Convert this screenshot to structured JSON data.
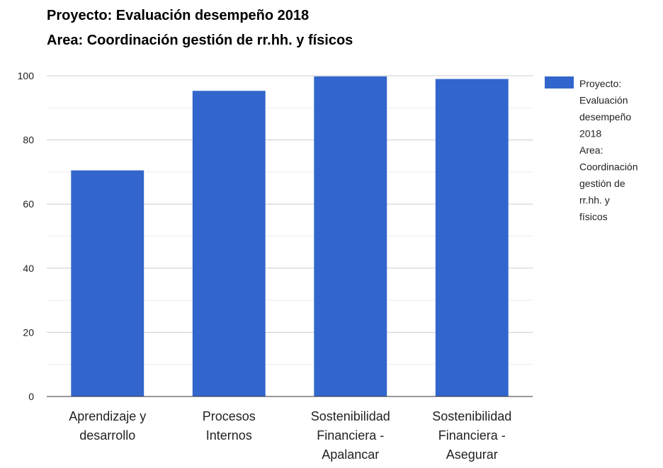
{
  "chart_data": {
    "type": "bar",
    "title": "Proyecto: Evaluación desempeño 2018",
    "subtitle": "Area: Coordinación gestión de rr.hh. y físicos",
    "categories": [
      [
        "Aprendizaje y",
        "desarrollo"
      ],
      [
        "Procesos",
        "Internos"
      ],
      [
        "Sostenibilidad",
        "Financiera -",
        "Apalancar"
      ],
      [
        "Sostenibilidad",
        "Financiera -",
        "Asegurar"
      ]
    ],
    "series": [
      {
        "name": "Proyecto: Evaluación desempeño 2018 Area: Coordinación gestión de rr.hh. y físicos",
        "legend_lines": [
          "Proyecto:",
          "Evaluación",
          "desempeño",
          "2018",
          "Area:",
          "Coordinación",
          "gestión de",
          "rr.hh. y",
          "físicos"
        ],
        "values": [
          70.5,
          95.3,
          99.8,
          99
        ]
      }
    ],
    "yticks": [
      "0",
      "20",
      "40",
      "60",
      "80",
      "100"
    ],
    "ylim": [
      0,
      100
    ],
    "xlabel": "",
    "ylabel": "",
    "grid": true,
    "legend": "right",
    "colors": {
      "bar": "#3366cc",
      "grid": "#cccccc",
      "minor_grid": "#ebebeb",
      "baseline": "#333333"
    }
  }
}
